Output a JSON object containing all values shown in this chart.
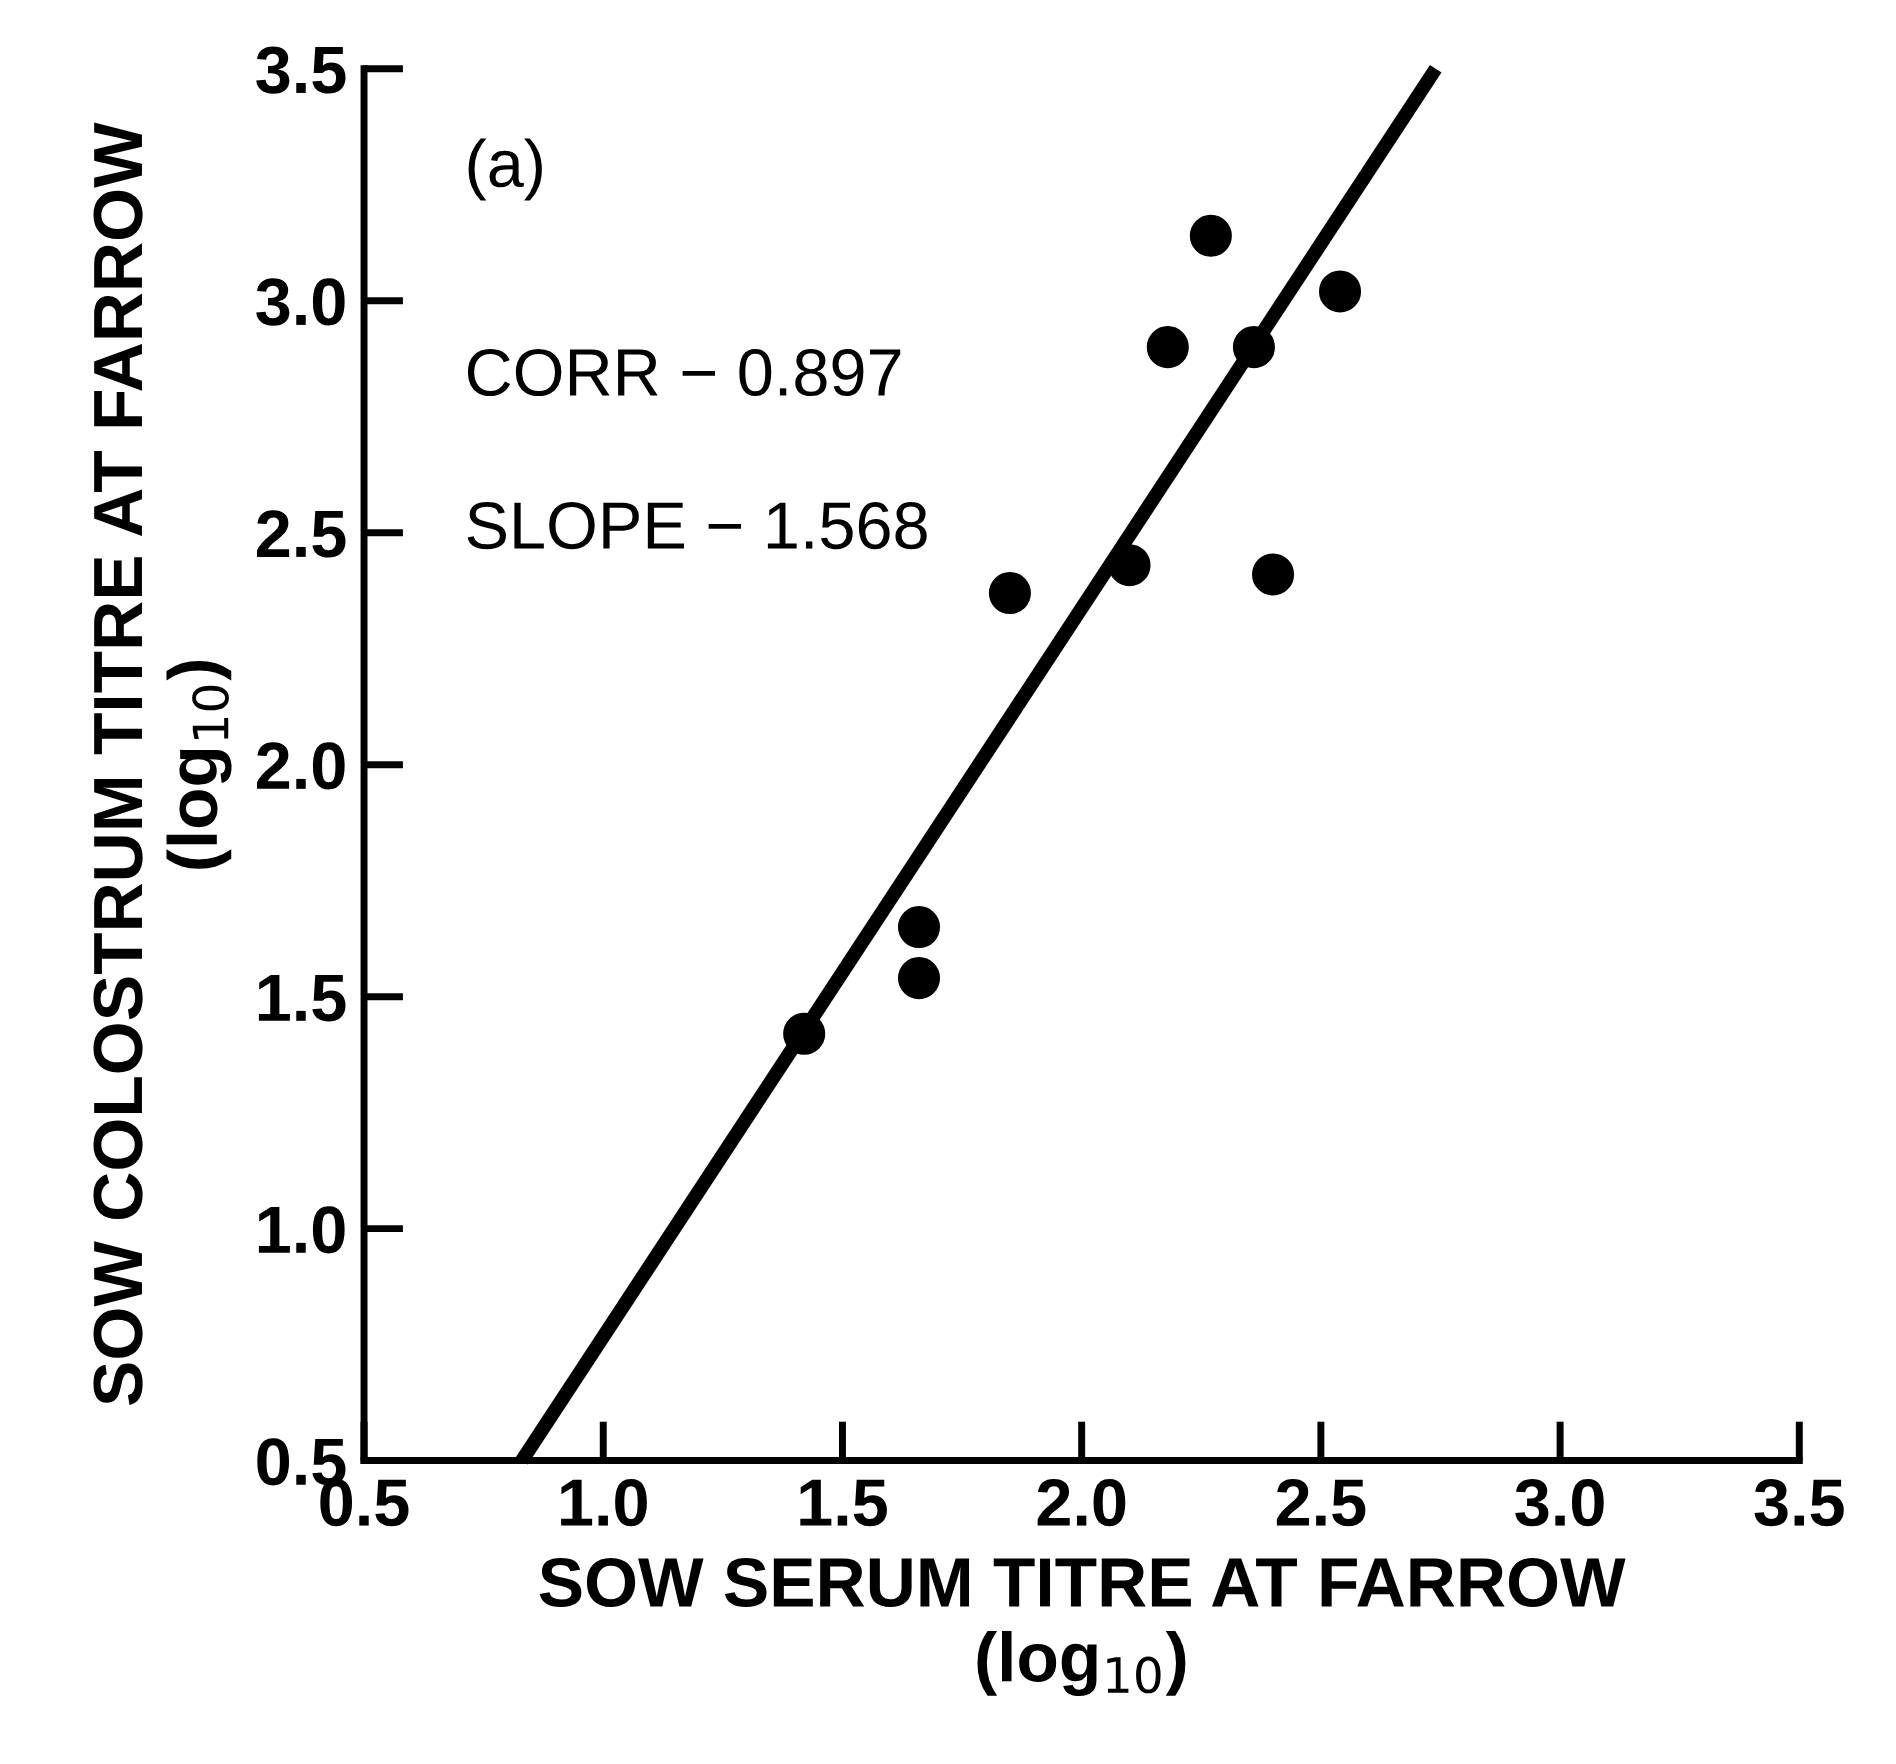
{
  "chart_data": {
    "type": "scatter",
    "xlabel": "SOW SERUM TITRE AT FARROW\n(log$_{10}$)",
    "ylabel": "SOW COLOSTRUM TITRE AT FARROW\n(log$_{10}$)",
    "annotations": [
      "(a)",
      "CORR − 0.897",
      "SLOPE − 1.568"
    ],
    "x": [
      1.42,
      1.66,
      1.66,
      1.85,
      2.1,
      2.18,
      2.27,
      2.36,
      2.4,
      2.54
    ],
    "series": [
      {
        "color": "#000000",
        "values": [
          1.42,
          1.65,
          1.54,
          2.37,
          2.43,
          2.9,
          3.14,
          2.9,
          2.41,
          3.02
        ],
        "marker": "circle"
      },
      {
        "type": "line",
        "color": "#000000",
        "x": [
          0.83,
          2.74
        ],
        "values": [
          0.5,
          3.5
        ],
        "line_style": "solid"
      }
    ],
    "xlim": [
      0.5,
      3.5
    ],
    "ylim": [
      0.5,
      3.5
    ],
    "xticks": [
      0.5,
      {
        "value": 1,
        "label": "1.0"
      },
      1.5,
      {
        "value": 2,
        "label": "2.0"
      },
      2.5,
      {
        "value": 3,
        "label": "3.0"
      },
      3.5
    ],
    "yticks": [
      0.5,
      {
        "value": 1,
        "label": "1.0"
      },
      1.5,
      {
        "value": 2,
        "label": "2.0"
      },
      2.5,
      {
        "value": 3,
        "label": "3.0"
      },
      3.5
    ],
    "grid": false,
    "legend": false
  }
}
